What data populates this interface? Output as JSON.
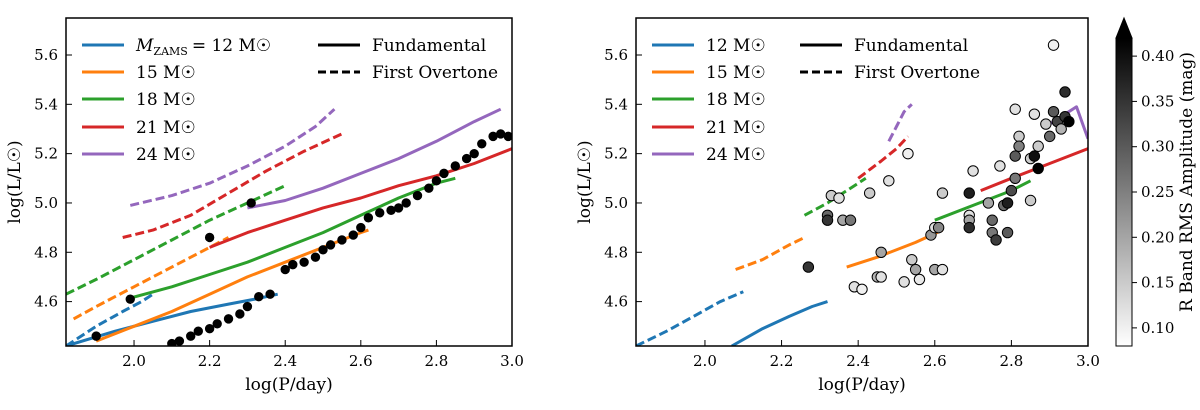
{
  "figure": {
    "xlabel": "log(P/day)",
    "ylabel": "log(L/L☉)",
    "x_ticks": [
      "2.0",
      "2.2",
      "2.4",
      "2.6",
      "2.8",
      "3.0"
    ],
    "y_ticks": [
      "4.6",
      "4.8",
      "5.0",
      "5.2",
      "5.4",
      "5.6"
    ],
    "legend_left": {
      "mass_prefix_main": "M",
      "mass_prefix_sub": "ZAMS",
      "mass_labels": [
        "= 12 M☉",
        "15 M☉",
        "18 M☉",
        "21 M☉",
        "24 M☉"
      ],
      "style_labels": [
        "Fundamental",
        "First Overtone"
      ]
    },
    "legend_right": {
      "mass_labels": [
        "12 M☉",
        "15 M☉",
        "18 M☉",
        "21 M☉",
        "24 M☉"
      ],
      "style_labels": [
        "Fundamental",
        "First Overtone"
      ]
    },
    "colorbar": {
      "label": "R Band RMS Amplitude (mag)",
      "ticks": [
        "0.10",
        "0.15",
        "0.20",
        "0.25",
        "0.30",
        "0.35",
        "0.40"
      ],
      "range": [
        0.08,
        0.42
      ],
      "colormap": "greys"
    },
    "colors": {
      "12": "#1f77b4",
      "15": "#ff7f0e",
      "18": "#2ca02c",
      "21": "#d62728",
      "24": "#9467bd"
    }
  },
  "chart_data": [
    {
      "type": "line",
      "panel": "left",
      "xlim": [
        1.82,
        3.0
      ],
      "ylim": [
        4.42,
        5.75
      ],
      "xlabel": "log(P/day)",
      "ylabel": "log(L/L☉)",
      "series": [
        {
          "name": "12 M☉ Fundamental",
          "mass": "12",
          "style": "fundamental",
          "x": [
            1.82,
            1.95,
            2.05,
            2.15,
            2.25,
            2.32,
            2.38
          ],
          "y": [
            4.42,
            4.48,
            4.52,
            4.56,
            4.59,
            4.61,
            4.63
          ]
        },
        {
          "name": "12 M☉ First Overtone",
          "mass": "12",
          "style": "overtone",
          "x": [
            1.82,
            1.9,
            1.97,
            2.02,
            2.05
          ],
          "y": [
            4.42,
            4.5,
            4.56,
            4.6,
            4.63
          ]
        },
        {
          "name": "15 M☉ Fundamental",
          "mass": "15",
          "style": "fundamental",
          "x": [
            1.9,
            2.0,
            2.1,
            2.2,
            2.3,
            2.4,
            2.5,
            2.6,
            2.62
          ],
          "y": [
            4.44,
            4.5,
            4.56,
            4.63,
            4.7,
            4.76,
            4.82,
            4.88,
            4.89
          ]
        },
        {
          "name": "15 M☉ First Overtone",
          "mass": "15",
          "style": "overtone",
          "x": [
            1.84,
            1.9,
            2.0,
            2.1,
            2.2,
            2.25
          ],
          "y": [
            4.53,
            4.58,
            4.66,
            4.74,
            4.82,
            4.86
          ]
        },
        {
          "name": "18 M☉ Fundamental",
          "mass": "18",
          "style": "fundamental",
          "x": [
            1.98,
            2.1,
            2.2,
            2.3,
            2.4,
            2.5,
            2.6,
            2.7,
            2.8,
            2.85
          ],
          "y": [
            4.61,
            4.66,
            4.71,
            4.76,
            4.82,
            4.88,
            4.95,
            5.02,
            5.08,
            5.1
          ]
        },
        {
          "name": "18 M☉ First Overtone",
          "mass": "18",
          "style": "overtone",
          "x": [
            1.82,
            1.9,
            2.0,
            2.1,
            2.2,
            2.3,
            2.4
          ],
          "y": [
            4.63,
            4.69,
            4.77,
            4.85,
            4.93,
            5.0,
            5.07
          ]
        },
        {
          "name": "21 M☉ Fundamental",
          "mass": "21",
          "style": "fundamental",
          "x": [
            2.2,
            2.3,
            2.4,
            2.5,
            2.6,
            2.7,
            2.8,
            2.9,
            3.0
          ],
          "y": [
            4.82,
            4.88,
            4.93,
            4.98,
            5.02,
            5.07,
            5.11,
            5.16,
            5.22
          ]
        },
        {
          "name": "21 M☉ First Overtone",
          "mass": "21",
          "style": "overtone",
          "x": [
            1.97,
            2.05,
            2.15,
            2.25,
            2.35,
            2.45,
            2.55
          ],
          "y": [
            4.86,
            4.89,
            4.95,
            5.04,
            5.13,
            5.21,
            5.28
          ]
        },
        {
          "name": "24 M☉ Fundamental",
          "mass": "24",
          "style": "fundamental",
          "x": [
            2.3,
            2.4,
            2.5,
            2.6,
            2.7,
            2.8,
            2.9,
            2.97
          ],
          "y": [
            4.98,
            5.01,
            5.06,
            5.12,
            5.18,
            5.25,
            5.33,
            5.38
          ]
        },
        {
          "name": "24 M☉ First Overtone",
          "mass": "24",
          "style": "overtone",
          "x": [
            1.99,
            2.1,
            2.2,
            2.3,
            2.4,
            2.48,
            2.53
          ],
          "y": [
            4.99,
            5.03,
            5.08,
            5.15,
            5.23,
            5.31,
            5.38
          ]
        }
      ],
      "observed_points": {
        "marker": "black filled circle",
        "x": [
          1.9,
          1.99,
          2.1,
          2.12,
          2.15,
          2.17,
          2.2,
          2.22,
          2.25,
          2.28,
          2.3,
          2.33,
          2.36,
          2.4,
          2.42,
          2.45,
          2.48,
          2.5,
          2.52,
          2.55,
          2.58,
          2.6,
          2.62,
          2.65,
          2.68,
          2.7,
          2.72,
          2.75,
          2.78,
          2.8,
          2.82,
          2.85,
          2.88,
          2.9,
          2.92,
          2.95,
          2.97,
          2.99,
          2.2,
          2.31
        ],
        "y": [
          4.46,
          4.61,
          4.43,
          4.44,
          4.46,
          4.48,
          4.49,
          4.51,
          4.53,
          4.55,
          4.58,
          4.62,
          4.63,
          4.73,
          4.75,
          4.76,
          4.78,
          4.81,
          4.83,
          4.85,
          4.87,
          4.9,
          4.94,
          4.96,
          4.97,
          4.98,
          5.0,
          5.03,
          5.06,
          5.09,
          5.12,
          5.15,
          5.18,
          5.2,
          5.24,
          5.27,
          5.28,
          5.27,
          4.86,
          5.0
        ]
      }
    },
    {
      "type": "scatter",
      "panel": "right",
      "xlim": [
        1.82,
        3.0
      ],
      "ylim": [
        4.42,
        5.75
      ],
      "xlabel": "log(P/day)",
      "ylabel": "log(L/L☉)",
      "points": [
        {
          "x": 2.27,
          "y": 4.74,
          "amp": 0.35
        },
        {
          "x": 2.32,
          "y": 4.95,
          "amp": 0.28
        },
        {
          "x": 2.32,
          "y": 4.93,
          "amp": 0.35
        },
        {
          "x": 2.33,
          "y": 5.03,
          "amp": 0.15
        },
        {
          "x": 2.35,
          "y": 5.02,
          "amp": 0.12
        },
        {
          "x": 2.36,
          "y": 4.93,
          "amp": 0.2
        },
        {
          "x": 2.38,
          "y": 4.93,
          "amp": 0.26
        },
        {
          "x": 2.39,
          "y": 4.66,
          "amp": 0.12
        },
        {
          "x": 2.41,
          "y": 4.65,
          "amp": 0.1
        },
        {
          "x": 2.43,
          "y": 5.04,
          "amp": 0.15
        },
        {
          "x": 2.45,
          "y": 4.7,
          "amp": 0.18
        },
        {
          "x": 2.46,
          "y": 4.8,
          "amp": 0.2
        },
        {
          "x": 2.46,
          "y": 4.7,
          "amp": 0.12
        },
        {
          "x": 2.48,
          "y": 5.09,
          "amp": 0.12
        },
        {
          "x": 2.52,
          "y": 4.68,
          "amp": 0.12
        },
        {
          "x": 2.53,
          "y": 5.2,
          "amp": 0.1
        },
        {
          "x": 2.54,
          "y": 4.77,
          "amp": 0.15
        },
        {
          "x": 2.55,
          "y": 4.73,
          "amp": 0.2
        },
        {
          "x": 2.56,
          "y": 4.69,
          "amp": 0.11
        },
        {
          "x": 2.59,
          "y": 4.87,
          "amp": 0.22
        },
        {
          "x": 2.6,
          "y": 4.9,
          "amp": 0.12
        },
        {
          "x": 2.6,
          "y": 4.73,
          "amp": 0.2
        },
        {
          "x": 2.61,
          "y": 4.9,
          "amp": 0.24
        },
        {
          "x": 2.62,
          "y": 4.73,
          "amp": 0.12
        },
        {
          "x": 2.62,
          "y": 5.04,
          "amp": 0.15
        },
        {
          "x": 2.69,
          "y": 5.04,
          "amp": 0.38
        },
        {
          "x": 2.69,
          "y": 4.95,
          "amp": 0.12
        },
        {
          "x": 2.69,
          "y": 4.93,
          "amp": 0.2
        },
        {
          "x": 2.69,
          "y": 4.9,
          "amp": 0.36
        },
        {
          "x": 2.7,
          "y": 5.13,
          "amp": 0.12
        },
        {
          "x": 2.74,
          "y": 5.0,
          "amp": 0.2
        },
        {
          "x": 2.75,
          "y": 4.93,
          "amp": 0.28
        },
        {
          "x": 2.75,
          "y": 4.88,
          "amp": 0.26
        },
        {
          "x": 2.76,
          "y": 4.85,
          "amp": 0.34
        },
        {
          "x": 2.77,
          "y": 5.15,
          "amp": 0.12
        },
        {
          "x": 2.78,
          "y": 4.99,
          "amp": 0.28
        },
        {
          "x": 2.79,
          "y": 4.88,
          "amp": 0.3
        },
        {
          "x": 2.79,
          "y": 5.0,
          "amp": 0.38
        },
        {
          "x": 2.8,
          "y": 5.05,
          "amp": 0.32
        },
        {
          "x": 2.81,
          "y": 5.1,
          "amp": 0.26
        },
        {
          "x": 2.81,
          "y": 5.19,
          "amp": 0.3
        },
        {
          "x": 2.81,
          "y": 5.38,
          "amp": 0.12
        },
        {
          "x": 2.82,
          "y": 5.27,
          "amp": 0.15
        },
        {
          "x": 2.82,
          "y": 5.23,
          "amp": 0.25
        },
        {
          "x": 2.85,
          "y": 5.18,
          "amp": 0.15
        },
        {
          "x": 2.85,
          "y": 5.01,
          "amp": 0.15
        },
        {
          "x": 2.86,
          "y": 5.36,
          "amp": 0.12
        },
        {
          "x": 2.86,
          "y": 5.19,
          "amp": 0.4
        },
        {
          "x": 2.87,
          "y": 5.23,
          "amp": 0.15
        },
        {
          "x": 2.87,
          "y": 5.14,
          "amp": 0.42
        },
        {
          "x": 2.89,
          "y": 5.32,
          "amp": 0.15
        },
        {
          "x": 2.9,
          "y": 5.27,
          "amp": 0.28
        },
        {
          "x": 2.91,
          "y": 5.37,
          "amp": 0.3
        },
        {
          "x": 2.91,
          "y": 5.64,
          "amp": 0.1
        },
        {
          "x": 2.92,
          "y": 5.33,
          "amp": 0.33
        },
        {
          "x": 2.93,
          "y": 5.3,
          "amp": 0.18
        },
        {
          "x": 2.94,
          "y": 5.35,
          "amp": 0.35
        },
        {
          "x": 2.94,
          "y": 5.45,
          "amp": 0.36
        },
        {
          "x": 2.95,
          "y": 5.33,
          "amp": 0.42
        }
      ],
      "series": [
        {
          "name": "12 M☉ Fundamental",
          "mass": "12",
          "style": "fundamental",
          "x": [
            2.07,
            2.15,
            2.22,
            2.28,
            2.32
          ],
          "y": [
            4.42,
            4.49,
            4.54,
            4.58,
            4.6
          ]
        },
        {
          "name": "12 M☉ First Overtone",
          "mass": "12",
          "style": "overtone",
          "x": [
            1.82,
            1.9,
            1.97,
            2.04,
            2.1
          ],
          "y": [
            4.42,
            4.48,
            4.54,
            4.6,
            4.64
          ]
        },
        {
          "name": "15 M☉ Fundamental",
          "mass": "15",
          "style": "fundamental",
          "x": [
            2.37,
            2.45,
            2.55,
            2.62
          ],
          "y": [
            4.74,
            4.78,
            4.84,
            4.89
          ]
        },
        {
          "name": "15 M☉ First Overtone",
          "mass": "15",
          "style": "overtone",
          "x": [
            2.08,
            2.15,
            2.22,
            2.26
          ],
          "y": [
            4.73,
            4.77,
            4.83,
            4.86
          ]
        },
        {
          "name": "18 M☉ Fundamental",
          "mass": "18",
          "style": "fundamental",
          "x": [
            2.6,
            2.7,
            2.8,
            2.85
          ],
          "y": [
            4.93,
            4.99,
            5.05,
            5.09
          ]
        },
        {
          "name": "18 M☉ First Overtone",
          "mass": "18",
          "style": "overtone",
          "x": [
            2.26,
            2.32,
            2.38,
            2.42
          ],
          "y": [
            4.95,
            5.0,
            5.06,
            5.1
          ]
        },
        {
          "name": "21 M☉ Fundamental",
          "mass": "21",
          "style": "fundamental",
          "x": [
            2.72,
            2.8,
            2.9,
            3.0
          ],
          "y": [
            5.05,
            5.1,
            5.16,
            5.22
          ]
        },
        {
          "name": "21 M☉ First Overtone",
          "mass": "21",
          "style": "overtone",
          "x": [
            2.4,
            2.46,
            2.5,
            2.53
          ],
          "y": [
            5.1,
            5.17,
            5.22,
            5.27
          ]
        },
        {
          "name": "24 M☉ Fundamental",
          "mass": "24",
          "style": "fundamental",
          "x": [
            2.9,
            2.94,
            2.97,
            3.0
          ],
          "y": [
            5.32,
            5.36,
            5.39,
            5.26
          ]
        },
        {
          "name": "24 M☉ First Overtone",
          "mass": "24",
          "style": "overtone",
          "x": [
            2.48,
            2.5,
            2.52,
            2.54
          ],
          "y": [
            5.25,
            5.31,
            5.37,
            5.4
          ]
        }
      ]
    }
  ]
}
